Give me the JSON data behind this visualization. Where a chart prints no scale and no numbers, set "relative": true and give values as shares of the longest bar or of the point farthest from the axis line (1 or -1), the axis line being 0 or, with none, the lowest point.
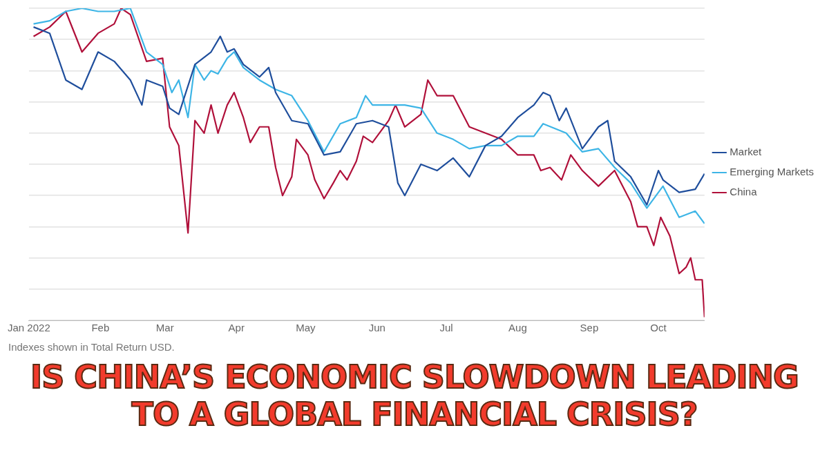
{
  "chart_data": {
    "type": "line",
    "title": "IS CHINA’S ECONOMIC SLOWDOWN LEADING TO A GLOBAL FINANCIAL CRISIS?",
    "annotations": [
      "Indexes shown in Total Return USD."
    ],
    "relative": true,
    "grid": "y",
    "legend": "right",
    "line_style": "solid",
    "xlim": [
      "2022-01-01",
      "2022-10-21"
    ],
    "xticks": [
      {
        "value": "2022-01-01",
        "label": "Jan 2022"
      },
      {
        "value": "2022-02-01",
        "label": "Feb"
      },
      {
        "value": "2022-03-01",
        "label": "Mar"
      },
      {
        "value": "2022-04-01",
        "label": "Apr"
      },
      {
        "value": "2022-05-01",
        "label": "May"
      },
      {
        "value": "2022-06-01",
        "label": "Jun"
      },
      {
        "value": "2022-07-01",
        "label": "Jul"
      },
      {
        "value": "2022-08-01",
        "label": "Aug"
      },
      {
        "value": "2022-09-01",
        "label": "Sep"
      },
      {
        "value": "2022-10-01",
        "label": "Oct"
      }
    ],
    "series": [
      {
        "name": "Market",
        "color": "#1f4e9c",
        "x": [
          "2022-01-03",
          "2022-01-10",
          "2022-01-17",
          "2022-01-24",
          "2022-01-31",
          "2022-02-07",
          "2022-02-14",
          "2022-02-19",
          "2022-02-21",
          "2022-02-28",
          "2022-03-03",
          "2022-03-07",
          "2022-03-14",
          "2022-03-21",
          "2022-03-25",
          "2022-03-28",
          "2022-03-31",
          "2022-04-04",
          "2022-04-11",
          "2022-04-15",
          "2022-04-18",
          "2022-04-25",
          "2022-05-02",
          "2022-05-09",
          "2022-05-16",
          "2022-05-23",
          "2022-05-30",
          "2022-06-06",
          "2022-06-10",
          "2022-06-13",
          "2022-06-20",
          "2022-06-27",
          "2022-07-04",
          "2022-07-11",
          "2022-07-18",
          "2022-07-25",
          "2022-08-01",
          "2022-08-08",
          "2022-08-12",
          "2022-08-15",
          "2022-08-19",
          "2022-08-22",
          "2022-08-29",
          "2022-09-05",
          "2022-09-09",
          "2022-09-12",
          "2022-09-19",
          "2022-09-26",
          "2022-10-01",
          "2022-10-03",
          "2022-10-10",
          "2022-10-17",
          "2022-10-21"
        ],
        "values": [
          0.94,
          0.92,
          0.77,
          0.74,
          0.86,
          0.83,
          0.77,
          0.69,
          0.77,
          0.75,
          0.68,
          0.66,
          0.82,
          0.86,
          0.91,
          0.86,
          0.87,
          0.82,
          0.78,
          0.81,
          0.73,
          0.64,
          0.63,
          0.53,
          0.54,
          0.63,
          0.64,
          0.62,
          0.44,
          0.4,
          0.5,
          0.48,
          0.52,
          0.46,
          0.56,
          0.59,
          0.65,
          0.69,
          0.73,
          0.72,
          0.64,
          0.68,
          0.55,
          0.62,
          0.64,
          0.51,
          0.46,
          0.37,
          0.48,
          0.45,
          0.41,
          0.42,
          0.47
        ]
      },
      {
        "name": "Emerging Markets",
        "color": "#3db5e6",
        "x": [
          "2022-01-03",
          "2022-01-10",
          "2022-01-17",
          "2022-01-24",
          "2022-01-31",
          "2022-02-07",
          "2022-02-14",
          "2022-02-21",
          "2022-02-28",
          "2022-03-04",
          "2022-03-07",
          "2022-03-11",
          "2022-03-14",
          "2022-03-18",
          "2022-03-21",
          "2022-03-24",
          "2022-03-28",
          "2022-03-31",
          "2022-04-04",
          "2022-04-11",
          "2022-04-18",
          "2022-04-25",
          "2022-05-02",
          "2022-05-09",
          "2022-05-16",
          "2022-05-23",
          "2022-05-27",
          "2022-05-30",
          "2022-06-06",
          "2022-06-13",
          "2022-06-20",
          "2022-06-27",
          "2022-07-04",
          "2022-07-11",
          "2022-07-18",
          "2022-07-25",
          "2022-08-01",
          "2022-08-08",
          "2022-08-12",
          "2022-08-22",
          "2022-08-29",
          "2022-09-05",
          "2022-09-12",
          "2022-09-19",
          "2022-09-26",
          "2022-10-03",
          "2022-10-10",
          "2022-10-17",
          "2022-10-21"
        ],
        "values": [
          0.95,
          0.96,
          0.99,
          1.0,
          0.99,
          0.99,
          1.0,
          0.86,
          0.82,
          0.73,
          0.77,
          0.65,
          0.82,
          0.77,
          0.8,
          0.79,
          0.84,
          0.86,
          0.81,
          0.77,
          0.74,
          0.72,
          0.64,
          0.54,
          0.63,
          0.65,
          0.72,
          0.69,
          0.69,
          0.69,
          0.68,
          0.6,
          0.58,
          0.55,
          0.56,
          0.56,
          0.59,
          0.59,
          0.63,
          0.6,
          0.54,
          0.55,
          0.49,
          0.44,
          0.36,
          0.43,
          0.33,
          0.35,
          0.31
        ]
      },
      {
        "name": "China",
        "color": "#b0103a",
        "x": [
          "2022-01-03",
          "2022-01-10",
          "2022-01-17",
          "2022-01-24",
          "2022-01-31",
          "2022-02-07",
          "2022-02-10",
          "2022-02-14",
          "2022-02-21",
          "2022-02-28",
          "2022-03-03",
          "2022-03-07",
          "2022-03-11",
          "2022-03-14",
          "2022-03-18",
          "2022-03-21",
          "2022-03-24",
          "2022-03-28",
          "2022-03-31",
          "2022-04-04",
          "2022-04-07",
          "2022-04-11",
          "2022-04-15",
          "2022-04-18",
          "2022-04-21",
          "2022-04-25",
          "2022-04-27",
          "2022-05-02",
          "2022-05-05",
          "2022-05-09",
          "2022-05-13",
          "2022-05-16",
          "2022-05-19",
          "2022-05-23",
          "2022-05-26",
          "2022-05-30",
          "2022-06-06",
          "2022-06-09",
          "2022-06-13",
          "2022-06-20",
          "2022-06-23",
          "2022-06-27",
          "2022-07-04",
          "2022-07-11",
          "2022-07-18",
          "2022-07-25",
          "2022-08-01",
          "2022-08-08",
          "2022-08-11",
          "2022-08-15",
          "2022-08-20",
          "2022-08-24",
          "2022-08-29",
          "2022-09-05",
          "2022-09-12",
          "2022-09-19",
          "2022-09-22",
          "2022-09-26",
          "2022-09-29",
          "2022-10-02",
          "2022-10-06",
          "2022-10-10",
          "2022-10-13",
          "2022-10-15",
          "2022-10-17",
          "2022-10-20",
          "2022-10-21"
        ],
        "values": [
          0.91,
          0.94,
          0.99,
          0.86,
          0.92,
          0.95,
          1.0,
          0.98,
          0.83,
          0.84,
          0.62,
          0.56,
          0.28,
          0.64,
          0.6,
          0.69,
          0.6,
          0.69,
          0.73,
          0.65,
          0.57,
          0.62,
          0.62,
          0.49,
          0.4,
          0.46,
          0.58,
          0.53,
          0.45,
          0.39,
          0.44,
          0.48,
          0.45,
          0.51,
          0.59,
          0.57,
          0.64,
          0.69,
          0.62,
          0.66,
          0.77,
          0.72,
          0.72,
          0.62,
          0.6,
          0.58,
          0.53,
          0.53,
          0.48,
          0.49,
          0.45,
          0.53,
          0.48,
          0.43,
          0.48,
          0.38,
          0.3,
          0.3,
          0.24,
          0.33,
          0.27,
          0.15,
          0.17,
          0.2,
          0.13,
          0.13,
          0.01
        ]
      }
    ]
  }
}
